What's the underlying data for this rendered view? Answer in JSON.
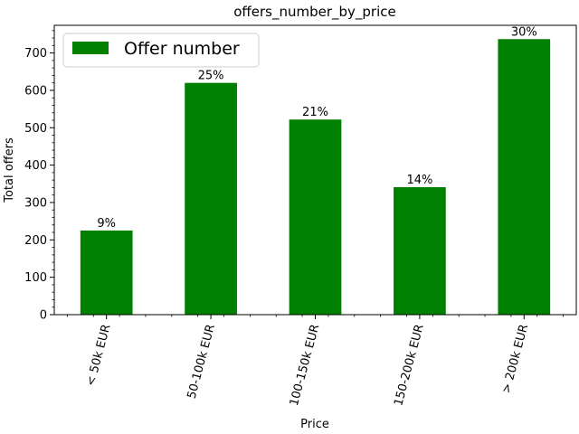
{
  "chart_data": {
    "type": "bar",
    "title": "offers_number_by_price",
    "xlabel": "Price",
    "ylabel": "Total offers",
    "categories": [
      "< 50k EUR",
      "50-100k EUR",
      "100-150k EUR",
      "150-200k EUR",
      "> 200k EUR"
    ],
    "series": [
      {
        "name": "Offer number",
        "values": [
          225,
          620,
          522,
          341,
          737
        ],
        "labels": [
          "9%",
          "25%",
          "21%",
          "14%",
          "30%"
        ],
        "color": "#008000"
      }
    ],
    "ylim": [
      0,
      774
    ],
    "yticks": [
      0,
      100,
      200,
      300,
      400,
      500,
      600,
      700
    ],
    "minor_tick_step": 20,
    "grid": false,
    "legend_position": "top-left",
    "xtick_rotation": 75
  }
}
